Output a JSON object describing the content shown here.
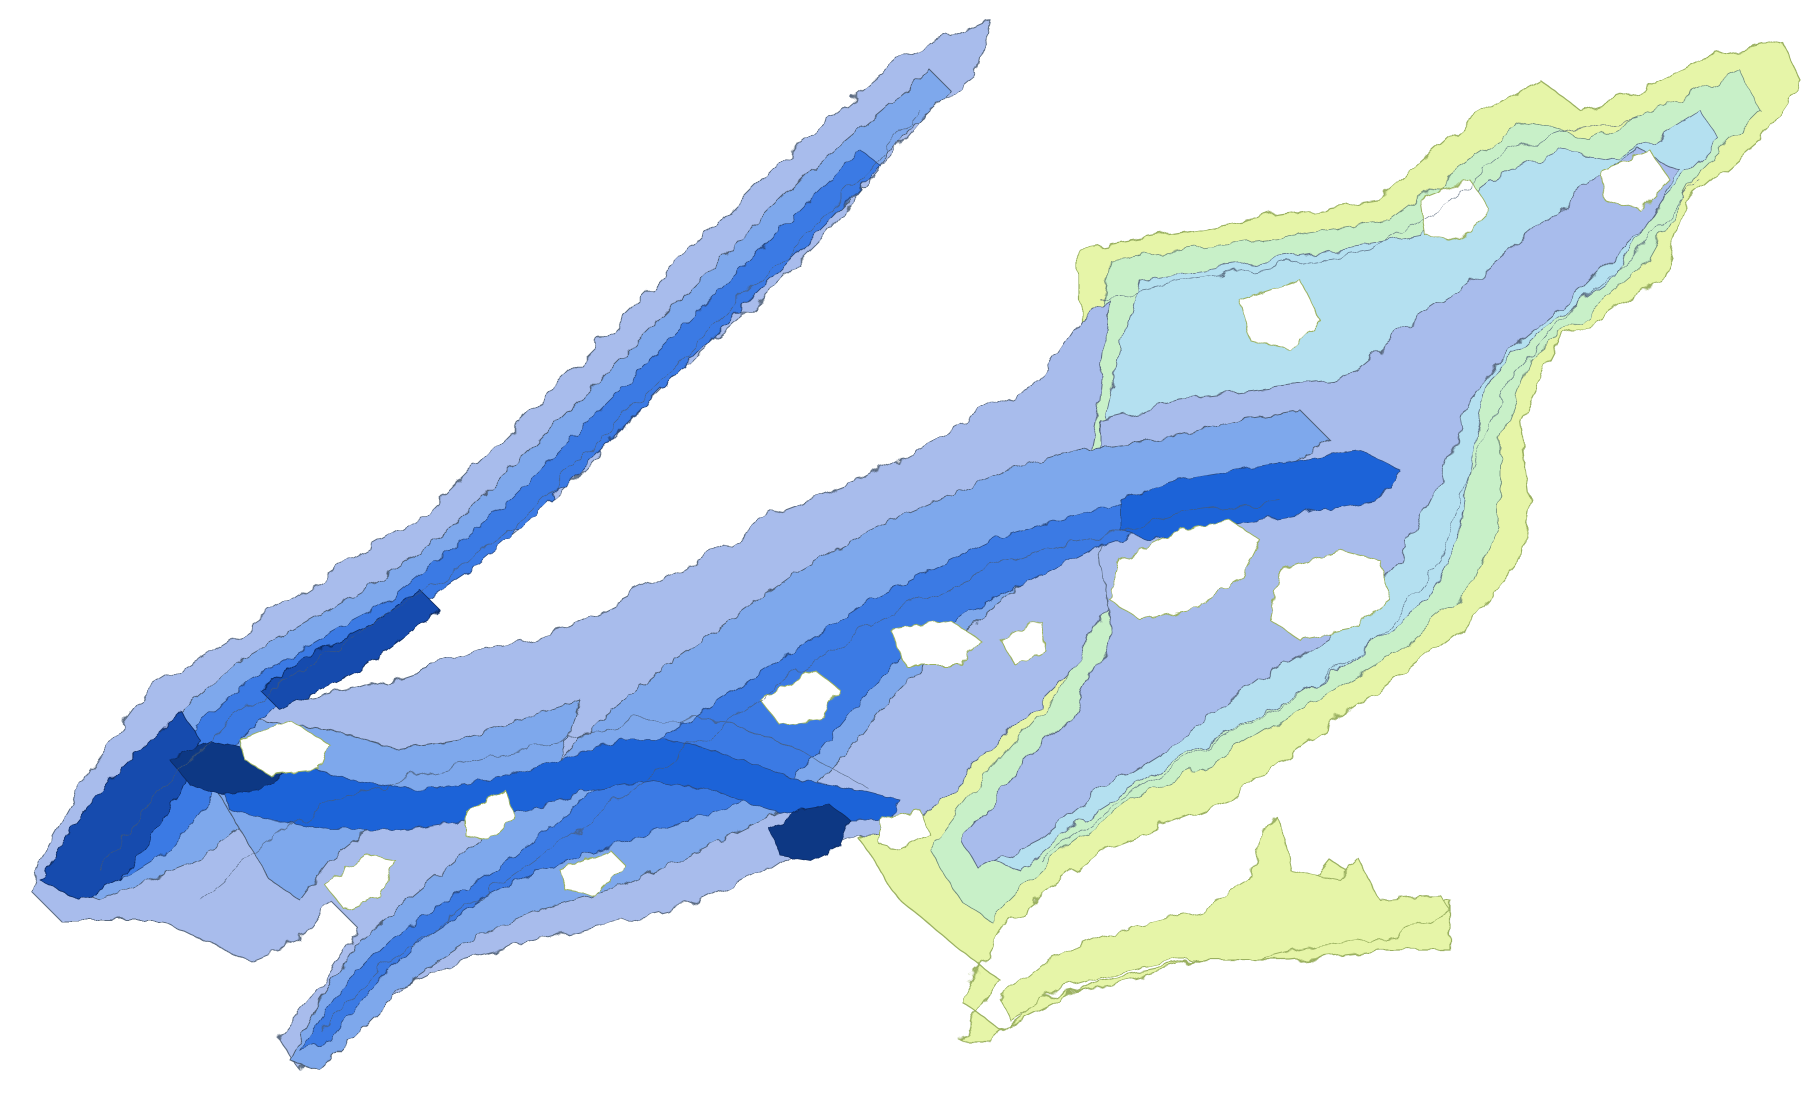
{
  "map": {
    "type": "bathymetric-contour",
    "background": "#ffffff",
    "contour_line_color": "#4a5a70",
    "shoreline_color": "#9ab060",
    "depth_palette": [
      "#e6f5a8",
      "#c8f0c8",
      "#b4e0f0",
      "#a8bcec",
      "#7ea8ec",
      "#5a92ec",
      "#3a7ae4",
      "#1f64d8",
      "#144cae",
      "#0c3884"
    ],
    "labels": []
  }
}
